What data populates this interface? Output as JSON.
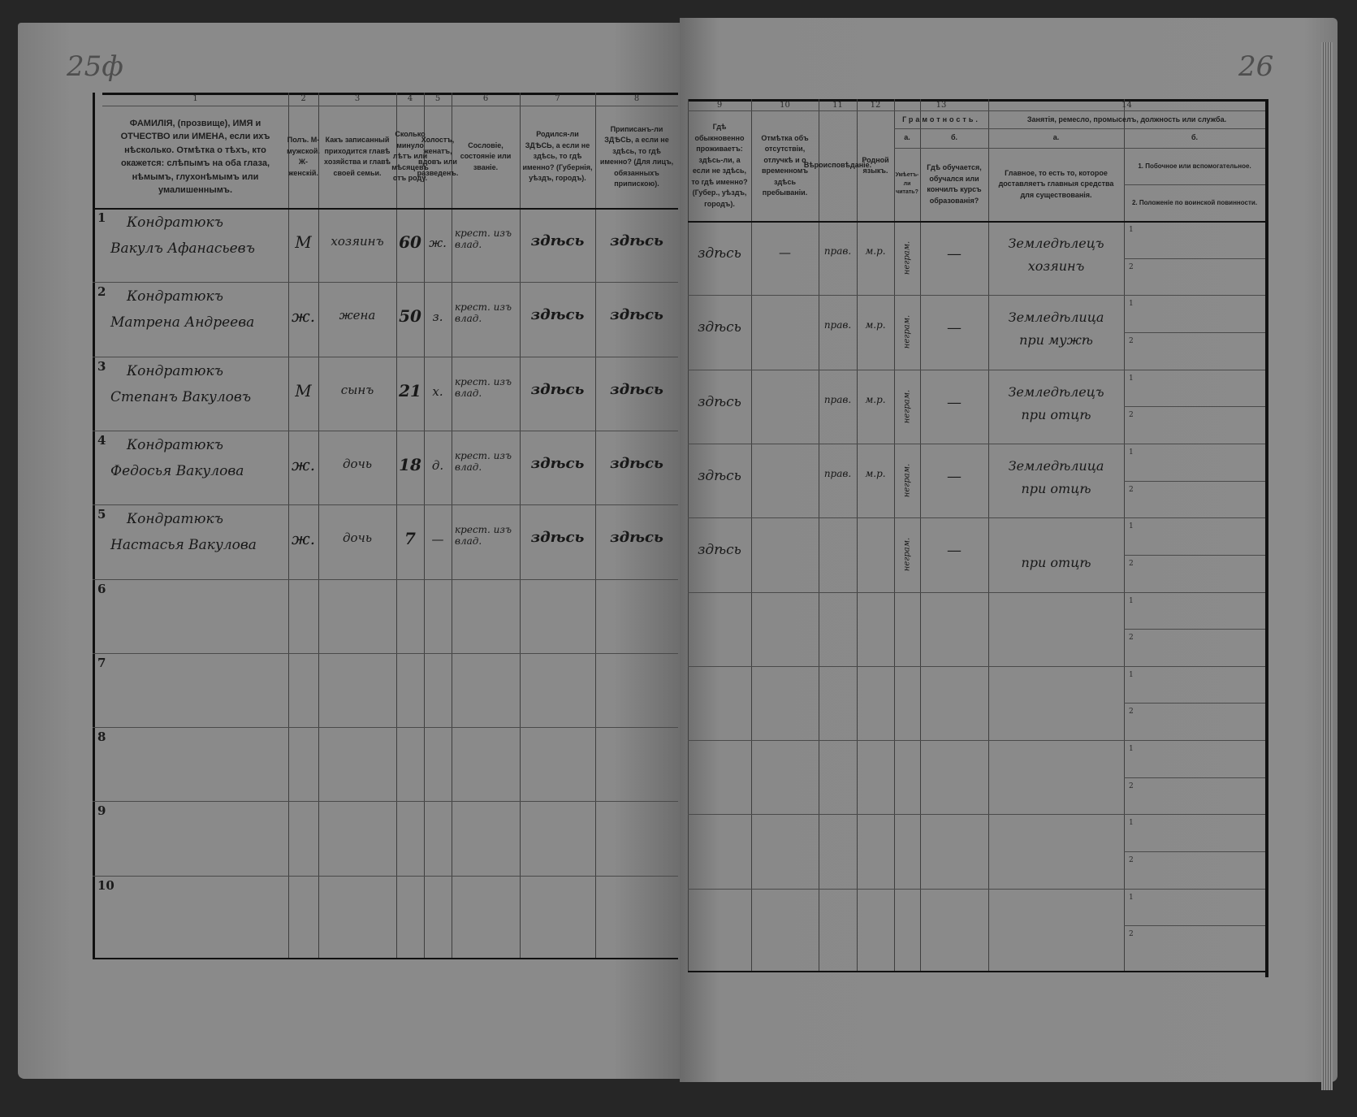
{
  "folios": {
    "left": "25ф",
    "right": "26"
  },
  "columns_left": [
    {
      "no": "1",
      "text": "ФАМИЛІЯ, (прозвище), ИМЯ и ОТЧЕСТВО или ИМЕНА, если ихъ нѣсколько. Отмѣтка о тѣхъ, кто окажется: слѣпымъ на оба глаза, нѣмымъ, глухонѣмымъ или умалишеннымъ."
    },
    {
      "no": "2",
      "text": "Полъ. М-мужской. Ж-женскій."
    },
    {
      "no": "3",
      "text": "Какъ записанный приходится главѣ хозяйства и главѣ своей семьи."
    },
    {
      "no": "4",
      "text": "Сколько минуло лѣтъ или мѣсяцевъ отъ роду."
    },
    {
      "no": "5",
      "text": "Холостъ, женатъ, вдовъ или разведенъ."
    },
    {
      "no": "6",
      "text": "Сословіе, состояніе или званіе."
    },
    {
      "no": "7",
      "text": "Родился-ли ЗДѢСЬ, а если не здѣсь, то гдѣ именно? (Губернія, уѣздъ, городъ)."
    },
    {
      "no": "8",
      "text": "Приписанъ-ли ЗДѢСЬ, а если не здѣсь, то гдѣ именно? (Для лицъ, обязанныхъ припискою)."
    }
  ],
  "columns_right": [
    {
      "no": "9",
      "text": "Гдѣ обыкновенно проживаетъ: здѣсь-ли, а если не здѣсь, то гдѣ именно? (Губер., уѣздъ, городъ)."
    },
    {
      "no": "10",
      "text": "Отмѣтка объ отсутствіи, отлучкѣ и о временномъ здѣсь пребываніи."
    },
    {
      "no": "11",
      "text": "Вѣроисповѣданіе."
    },
    {
      "no": "12",
      "text": "Родной языкъ."
    }
  ],
  "col13": {
    "no": "13",
    "title": "Грамотность.",
    "a_label": "а.",
    "a_text": "Умѣетъ-ли читать?",
    "b_label": "б.",
    "b_text": "Гдѣ обучается, обучался или кончилъ курсъ образованія?"
  },
  "col14": {
    "no": "14",
    "title": "Занятія, ремесло, промыселъ, должность или служба.",
    "a_label": "а.",
    "a_text": "Главное, то есть то, которое доставляетъ главныя средства для существованія.",
    "b_label": "б.",
    "b1": "1. Побочное или вспомогательное.",
    "b2": "2. Положеніе по воинской повинности."
  },
  "sub_labels": [
    "1",
    "2"
  ],
  "rows": [
    {
      "no": "1",
      "surname": "Кондратюкъ",
      "name": "Вакулъ Афанасьевъ",
      "sex": "М",
      "relation": "хозяинъ",
      "age": "60",
      "marital": "ж.",
      "estate": "крест. изъ влад.",
      "born": "здѣсь",
      "registered": "здѣсь",
      "residence": "здѣсь",
      "absence": "—",
      "religion": "прав.",
      "language": "м.р.",
      "literacy": "неграм.",
      "education": "—",
      "occupation1": "Земледѣлецъ",
      "occupation2": "хозяинъ"
    },
    {
      "no": "2",
      "surname": "Кондратюкъ",
      "name": "Матрена Андреева",
      "sex": "ж.",
      "relation": "жена",
      "age": "50",
      "marital": "з.",
      "estate": "крест. изъ влад.",
      "born": "здѣсь",
      "registered": "здѣсь",
      "residence": "здѣсь",
      "absence": "",
      "religion": "прав.",
      "language": "м.р.",
      "literacy": "неграм.",
      "education": "—",
      "occupation1": "Земледѣлица",
      "occupation2": "при мужѣ"
    },
    {
      "no": "3",
      "surname": "Кондратюкъ",
      "name": "Степанъ Вакуловъ",
      "sex": "М",
      "relation": "сынъ",
      "age": "21",
      "marital": "х.",
      "estate": "крест. изъ влад.",
      "born": "здѣсь",
      "registered": "здѣсь",
      "residence": "здѣсь",
      "absence": "",
      "religion": "прав.",
      "language": "м.р.",
      "literacy": "неграм.",
      "education": "—",
      "occupation1": "Земледѣлецъ",
      "occupation2": "при отцѣ"
    },
    {
      "no": "4",
      "surname": "Кондратюкъ",
      "name": "Федосья Вакулова",
      "sex": "ж.",
      "relation": "дочь",
      "age": "18",
      "marital": "д.",
      "estate": "крест. изъ влад.",
      "born": "здѣсь",
      "registered": "здѣсь",
      "residence": "здѣсь",
      "absence": "",
      "religion": "прав.",
      "language": "м.р.",
      "literacy": "неграм.",
      "education": "—",
      "occupation1": "Земледѣлица",
      "occupation2": "при отцѣ"
    },
    {
      "no": "5",
      "surname": "Кондратюкъ",
      "name": "Настасья Вакулова",
      "sex": "ж.",
      "relation": "дочь",
      "age": "7",
      "marital": "—",
      "estate": "крест. изъ влад.",
      "born": "здѣсь",
      "registered": "здѣсь",
      "residence": "здѣсь",
      "absence": "",
      "religion": "",
      "language": "",
      "literacy": "неграм.",
      "education": "—",
      "occupation1": "",
      "occupation2": "при отцѣ"
    },
    {
      "no": "6"
    },
    {
      "no": "7"
    },
    {
      "no": "8"
    },
    {
      "no": "9"
    },
    {
      "no": "10"
    }
  ]
}
